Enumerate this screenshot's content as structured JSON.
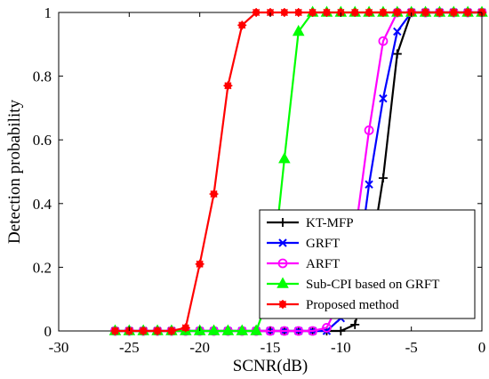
{
  "chart_data": {
    "type": "line",
    "title": "",
    "xlabel": "SCNR(dB)",
    "ylabel": "Detection probability",
    "xlim": [
      -30,
      0
    ],
    "ylim": [
      0,
      1
    ],
    "x_ticks": [
      "-30",
      "-25",
      "-20",
      "-15",
      "-10",
      "-5",
      "0"
    ],
    "y_ticks": [
      "0",
      "0.2",
      "0.4",
      "0.6",
      "0.8",
      "1"
    ],
    "grid": false,
    "legend_position": "bottom-right",
    "series": [
      {
        "name": "KT-MFP",
        "color": "#000000",
        "marker": "plus",
        "x": [
          -26,
          -25,
          -24,
          -23,
          -22,
          -21,
          -20,
          -19,
          -18,
          -17,
          -16,
          -15,
          -14,
          -13,
          -12,
          -11,
          -10,
          -9,
          -8,
          -7,
          -6,
          -5,
          -4,
          -3,
          -2,
          -1,
          0
        ],
        "y": [
          0,
          0,
          0,
          0,
          0,
          0,
          0,
          0,
          0,
          0,
          0,
          0,
          0,
          0,
          0,
          0,
          0,
          0.02,
          0.2,
          0.48,
          0.87,
          1,
          1,
          1,
          1,
          1,
          1
        ]
      },
      {
        "name": "GRFT",
        "color": "#0000ff",
        "marker": "x",
        "x": [
          -26,
          -25,
          -24,
          -23,
          -22,
          -21,
          -20,
          -19,
          -18,
          -17,
          -16,
          -15,
          -14,
          -13,
          -12,
          -11,
          -10,
          -9,
          -8,
          -7,
          -6,
          -5,
          -4,
          -3,
          -2,
          -1,
          0
        ],
        "y": [
          0,
          0,
          0,
          0,
          0,
          0,
          0,
          0,
          0,
          0,
          0,
          0,
          0,
          0,
          0,
          0,
          0.04,
          0.13,
          0.46,
          0.73,
          0.94,
          1,
          1,
          1,
          1,
          1,
          1
        ]
      },
      {
        "name": "ARFT",
        "color": "#ff00ff",
        "marker": "circle",
        "x": [
          -26,
          -25,
          -24,
          -23,
          -22,
          -21,
          -20,
          -19,
          -18,
          -17,
          -16,
          -15,
          -14,
          -13,
          -12,
          -11,
          -10,
          -9,
          -8,
          -7,
          -6,
          -5,
          -4,
          -3,
          -2,
          -1,
          0
        ],
        "y": [
          0,
          0,
          0,
          0,
          0,
          0,
          0,
          0,
          0,
          0,
          0,
          0,
          0,
          0,
          0,
          0.01,
          0.1,
          0.3,
          0.63,
          0.91,
          1,
          1,
          1,
          1,
          1,
          1,
          1
        ]
      },
      {
        "name": "Sub-CPI based on GRFT",
        "color": "#00ff00",
        "marker": "triangle",
        "x": [
          -26,
          -25,
          -24,
          -23,
          -22,
          -21,
          -20,
          -19,
          -18,
          -17,
          -16,
          -15,
          -14,
          -13,
          -12,
          -11,
          -10,
          -9,
          -8,
          -7,
          -6,
          -5,
          -4,
          -3,
          -2,
          -1,
          0
        ],
        "y": [
          0,
          0,
          0,
          0,
          0,
          0,
          0,
          0,
          0,
          0,
          0,
          0.12,
          0.54,
          0.94,
          1,
          1,
          1,
          1,
          1,
          1,
          1,
          1,
          1,
          1,
          1,
          1,
          1
        ]
      },
      {
        "name": "Proposed method",
        "color": "#ff0000",
        "marker": "star",
        "x": [
          -26,
          -25,
          -24,
          -23,
          -22,
          -21,
          -20,
          -19,
          -18,
          -17,
          -16,
          -15,
          -14,
          -13,
          -12,
          -11,
          -10,
          -9,
          -8,
          -7,
          -6,
          -5,
          -4,
          -3,
          -2,
          -1,
          0
        ],
        "y": [
          0,
          0,
          0,
          0,
          0,
          0.01,
          0.21,
          0.43,
          0.77,
          0.96,
          1,
          1,
          1,
          1,
          1,
          1,
          1,
          1,
          1,
          1,
          1,
          1,
          1,
          1,
          1,
          1,
          1
        ]
      }
    ]
  }
}
